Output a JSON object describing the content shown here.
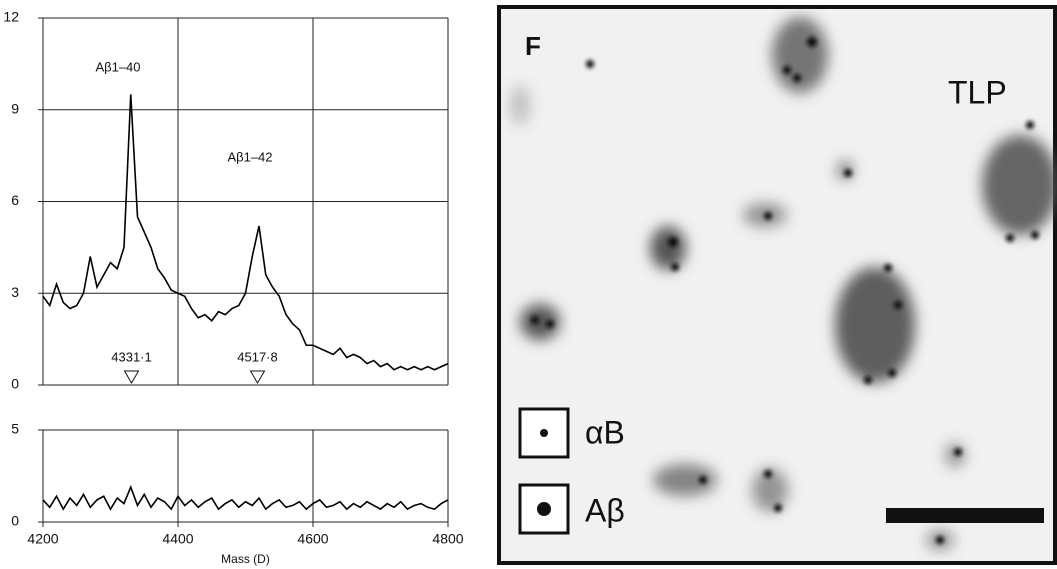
{
  "chart_data": [
    {
      "type": "line",
      "x": [
        4200,
        4210,
        4220,
        4230,
        4240,
        4250,
        4260,
        4270,
        4280,
        4290,
        4300,
        4310,
        4320,
        4330,
        4340,
        4350,
        4360,
        4370,
        4380,
        4390,
        4400,
        4410,
        4420,
        4430,
        4440,
        4450,
        4460,
        4470,
        4480,
        4490,
        4500,
        4510,
        4520,
        4530,
        4540,
        4550,
        4560,
        4570,
        4580,
        4590,
        4600,
        4610,
        4620,
        4630,
        4640,
        4650,
        4660,
        4670,
        4680,
        4690,
        4700,
        4710,
        4720,
        4730,
        4740,
        4750,
        4760,
        4770,
        4780,
        4790,
        4800
      ],
      "series": [
        {
          "color": "#000000",
          "values": [
            2.9,
            2.6,
            3.3,
            2.7,
            2.5,
            2.6,
            3.0,
            4.2,
            3.2,
            3.6,
            4.0,
            3.8,
            4.5,
            9.5,
            5.5,
            5.0,
            4.5,
            3.8,
            3.5,
            3.1,
            3.0,
            2.9,
            2.5,
            2.2,
            2.3,
            2.1,
            2.4,
            2.3,
            2.5,
            2.6,
            3.0,
            4.2,
            5.2,
            3.6,
            3.2,
            2.9,
            2.3,
            2.0,
            1.8,
            1.3,
            1.3,
            1.2,
            1.1,
            1.0,
            1.2,
            0.9,
            1.0,
            0.9,
            0.7,
            0.8,
            0.6,
            0.7,
            0.5,
            0.6,
            0.5,
            0.6,
            0.5,
            0.6,
            0.5,
            0.6,
            0.7
          ]
        }
      ],
      "xlim": [
        4200,
        4800
      ],
      "xticks": [
        4200,
        4400,
        4600,
        4800
      ],
      "ylim": [
        0,
        12
      ],
      "yticks": [
        0,
        3,
        6,
        9,
        12
      ],
      "grid": true,
      "annotations": [
        "Aβ1–40",
        "Aβ1–42"
      ],
      "peak_markers": [
        {
          "value": 4331.1,
          "label": "4331·1"
        },
        {
          "value": 4517.8,
          "label": "4517·8"
        }
      ]
    },
    {
      "type": "line",
      "x": [
        4200,
        4210,
        4220,
        4230,
        4240,
        4250,
        4260,
        4270,
        4280,
        4290,
        4300,
        4310,
        4320,
        4330,
        4340,
        4350,
        4360,
        4370,
        4380,
        4390,
        4400,
        4410,
        4420,
        4430,
        4440,
        4450,
        4460,
        4470,
        4480,
        4490,
        4500,
        4510,
        4520,
        4530,
        4540,
        4550,
        4560,
        4570,
        4580,
        4590,
        4600,
        4610,
        4620,
        4630,
        4640,
        4650,
        4660,
        4670,
        4680,
        4690,
        4700,
        4710,
        4720,
        4730,
        4740,
        4750,
        4760,
        4770,
        4780,
        4790,
        4800
      ],
      "series": [
        {
          "color": "#000000",
          "values": [
            1.2,
            0.8,
            1.4,
            0.7,
            1.3,
            0.9,
            1.5,
            0.8,
            1.2,
            1.4,
            0.7,
            1.3,
            1.0,
            1.9,
            0.9,
            1.5,
            0.8,
            1.3,
            1.1,
            0.7,
            1.4,
            0.9,
            1.2,
            0.8,
            1.1,
            1.3,
            0.7,
            1.0,
            1.2,
            0.8,
            1.1,
            0.9,
            1.3,
            0.7,
            1.0,
            1.2,
            0.8,
            0.9,
            1.1,
            0.7,
            1.0,
            1.2,
            0.8,
            0.9,
            1.1,
            0.7,
            1.0,
            0.8,
            1.1,
            0.9,
            0.7,
            1.0,
            0.8,
            1.1,
            0.7,
            0.9,
            1.0,
            0.8,
            0.7,
            1.0,
            1.2
          ]
        }
      ],
      "xlim": [
        4200,
        4800
      ],
      "xticks": [
        4200,
        4400,
        4600,
        4800
      ],
      "ylim": [
        0,
        5
      ],
      "yticks": [
        0,
        5
      ],
      "grid": true,
      "xlabel": "Mass (D)"
    }
  ],
  "image_panel": {
    "panel_label": "F",
    "region_label": "TLP",
    "legend": [
      "αB",
      "Aβ"
    ]
  }
}
